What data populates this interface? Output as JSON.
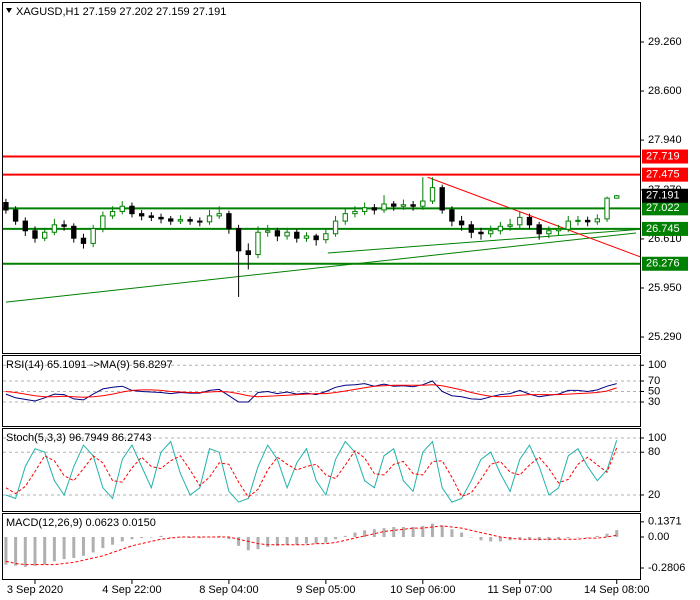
{
  "chart_data": [
    {
      "type": "candlestick",
      "title": "XAGUSD,H1  27.159 27.202 27.159 27.191",
      "up_color": "#008000",
      "down_color": "#000000",
      "xlim": [
        -0.3,
        65.4
      ],
      "xticks": [
        {
          "value": 3,
          "label": "3 Sep 2020"
        },
        {
          "value": 13,
          "label": "4 Sep 22:00"
        },
        {
          "value": 23,
          "label": "8 Sep 04:00"
        },
        {
          "value": 33,
          "label": "9 Sep 05:00"
        },
        {
          "value": 43,
          "label": "10 Sep 06:00"
        },
        {
          "value": 53,
          "label": "11 Sep 07:00"
        },
        {
          "value": 63,
          "label": "14 Sep 08:00"
        }
      ],
      "ylim": [
        25.075,
        29.785
      ],
      "yticks": [
        {
          "value": 29.26,
          "label": "29.260"
        },
        {
          "value": 28.6,
          "label": "28.600"
        },
        {
          "value": 27.94,
          "label": "27.940"
        },
        {
          "value": 27.27,
          "label": "27.270"
        },
        {
          "value": 26.61,
          "label": "26.610"
        },
        {
          "value": 25.95,
          "label": "25.950"
        },
        {
          "value": 25.29,
          "label": "25.290"
        }
      ],
      "levels": [
        {
          "value": 27.719,
          "label": "27.719",
          "color": "#ff0000"
        },
        {
          "value": 27.475,
          "label": "27.475",
          "color": "#ff0000"
        },
        {
          "value": 27.022,
          "label": "27.022",
          "color": "#008000"
        },
        {
          "value": 26.745,
          "label": "26.745",
          "color": "#008000"
        },
        {
          "value": 26.276,
          "label": "26.276",
          "color": "#008000"
        }
      ],
      "trendlines": [
        {
          "color": "#008000",
          "x": [
            0,
            65
          ],
          "y": [
            25.76,
            26.69
          ]
        },
        {
          "color": "#008000",
          "x": [
            33.2,
            65.4
          ],
          "y": [
            26.42,
            26.74
          ]
        },
        {
          "color": "#ff0000",
          "x": [
            43.5,
            65.4
          ],
          "y": [
            27.44,
            26.37
          ]
        }
      ],
      "ohlc": [
        [
          27.1,
          27.15,
          26.95,
          27.0
        ],
        [
          27.0,
          27.05,
          26.8,
          26.85
        ],
        [
          26.85,
          26.9,
          26.65,
          26.72
        ],
        [
          26.72,
          26.78,
          26.56,
          26.62
        ],
        [
          26.62,
          26.76,
          26.58,
          26.7
        ],
        [
          26.7,
          26.88,
          26.66,
          26.8
        ],
        [
          26.8,
          26.86,
          26.72,
          26.78
        ],
        [
          26.78,
          26.82,
          26.56,
          26.62
        ],
        [
          26.62,
          26.68,
          26.48,
          26.55
        ],
        [
          26.55,
          26.8,
          26.5,
          26.75
        ],
        [
          26.75,
          26.98,
          26.7,
          26.92
        ],
        [
          26.92,
          27.05,
          26.88,
          26.98
        ],
        [
          26.98,
          27.12,
          26.94,
          27.05
        ],
        [
          27.05,
          27.1,
          26.9,
          26.95
        ],
        [
          26.95,
          27.0,
          26.86,
          26.92
        ],
        [
          26.92,
          26.97,
          26.85,
          26.9
        ],
        [
          26.9,
          26.95,
          26.82,
          26.88
        ],
        [
          26.88,
          26.92,
          26.8,
          26.85
        ],
        [
          26.85,
          26.93,
          26.81,
          26.87
        ],
        [
          26.87,
          26.91,
          26.8,
          26.85
        ],
        [
          26.85,
          26.9,
          26.78,
          26.84
        ],
        [
          26.84,
          27.0,
          26.8,
          26.92
        ],
        [
          26.92,
          27.05,
          26.88,
          26.95
        ],
        [
          26.95,
          26.99,
          26.68,
          26.75
        ],
        [
          26.75,
          26.8,
          25.83,
          26.45
        ],
        [
          26.45,
          26.55,
          26.2,
          26.4
        ],
        [
          26.4,
          26.78,
          26.35,
          26.7
        ],
        [
          26.7,
          26.8,
          26.64,
          26.72
        ],
        [
          26.72,
          26.76,
          26.58,
          26.65
        ],
        [
          26.65,
          26.76,
          26.6,
          26.7
        ],
        [
          26.7,
          26.74,
          26.56,
          26.62
        ],
        [
          26.62,
          26.7,
          26.57,
          26.65
        ],
        [
          26.65,
          26.68,
          26.52,
          26.6
        ],
        [
          26.6,
          26.74,
          26.55,
          26.68
        ],
        [
          26.68,
          26.92,
          26.64,
          26.85
        ],
        [
          26.85,
          27.02,
          26.8,
          26.95
        ],
        [
          26.95,
          27.05,
          26.9,
          26.98
        ],
        [
          26.98,
          27.1,
          26.93,
          27.03
        ],
        [
          27.03,
          27.08,
          26.94,
          27.0
        ],
        [
          27.0,
          27.2,
          26.96,
          27.08
        ],
        [
          27.08,
          27.12,
          26.99,
          27.05
        ],
        [
          27.05,
          27.14,
          27.0,
          27.07
        ],
        [
          27.07,
          27.12,
          26.99,
          27.05
        ],
        [
          27.05,
          27.44,
          27.0,
          27.12
        ],
        [
          27.12,
          27.44,
          27.08,
          27.3
        ],
        [
          27.3,
          27.34,
          26.95,
          27.0
        ],
        [
          27.0,
          27.05,
          26.78,
          26.85
        ],
        [
          26.85,
          26.92,
          26.72,
          26.8
        ],
        [
          26.8,
          26.85,
          26.62,
          26.7
        ],
        [
          26.7,
          26.76,
          26.6,
          26.68
        ],
        [
          26.68,
          26.79,
          26.63,
          26.72
        ],
        [
          26.72,
          26.84,
          26.67,
          26.78
        ],
        [
          26.78,
          26.88,
          26.72,
          26.8
        ],
        [
          26.8,
          26.98,
          26.75,
          26.9
        ],
        [
          26.9,
          26.95,
          26.74,
          26.8
        ],
        [
          26.8,
          26.84,
          26.6,
          26.68
        ],
        [
          26.68,
          26.78,
          26.62,
          26.72
        ],
        [
          26.72,
          26.8,
          26.66,
          26.74
        ],
        [
          26.74,
          26.92,
          26.7,
          26.85
        ],
        [
          26.85,
          26.92,
          26.79,
          26.86
        ],
        [
          26.86,
          26.91,
          26.78,
          26.84
        ],
        [
          26.84,
          26.94,
          26.8,
          26.88
        ],
        [
          26.88,
          27.18,
          26.84,
          27.159
        ],
        [
          27.159,
          27.202,
          27.159,
          27.191
        ]
      ]
    },
    {
      "type": "line",
      "title": "RSI(14) 65.1091  ->MA(9) 56.8297",
      "ylim": [
        -15.7,
        117.6
      ],
      "yticks": [
        100,
        70,
        50,
        30
      ],
      "grid": true,
      "series": [
        {
          "color": "#000080",
          "dash": false,
          "values": [
            45,
            38,
            35,
            32,
            38,
            45,
            44,
            36,
            34,
            45,
            55,
            58,
            60,
            52,
            50,
            49,
            48,
            46,
            48,
            47,
            47,
            52,
            54,
            42,
            30,
            30,
            48,
            50,
            46,
            49,
            45,
            47,
            44,
            50,
            58,
            62,
            63,
            65,
            60,
            64,
            60,
            61,
            59,
            63,
            70,
            50,
            42,
            40,
            36,
            35,
            40,
            44,
            46,
            52,
            45,
            40,
            43,
            45,
            52,
            52,
            50,
            53,
            60,
            65.1091
          ]
        },
        {
          "color": "#ff0000",
          "dash": false,
          "values": [
            50,
            48,
            45,
            42,
            40,
            40,
            41,
            40,
            39,
            40,
            42,
            45,
            49,
            52,
            53,
            53,
            52,
            50,
            49,
            48,
            48,
            49,
            50,
            49,
            46,
            42,
            40,
            41,
            42,
            43,
            44,
            45,
            46,
            46,
            48,
            51,
            54,
            57,
            60,
            61,
            62,
            62,
            62,
            62,
            63,
            61,
            57,
            53,
            48,
            44,
            41,
            40,
            41,
            43,
            44,
            44,
            44,
            44,
            45,
            46,
            47,
            48,
            51,
            56.8297
          ]
        }
      ]
    },
    {
      "type": "line",
      "title": "Stoch(5,3,3) 96.7949 86.2743",
      "ylim": [
        -2.5,
        112.6
      ],
      "yticks": [
        100,
        80,
        20
      ],
      "grid": true,
      "series": [
        {
          "color": "#20b2aa",
          "dash": false,
          "values": [
            20,
            15,
            60,
            85,
            80,
            40,
            20,
            60,
            90,
            75,
            30,
            15,
            70,
            90,
            60,
            30,
            80,
            95,
            50,
            20,
            30,
            85,
            80,
            25,
            10,
            15,
            60,
            90,
            70,
            30,
            65,
            85,
            40,
            20,
            70,
            95,
            80,
            40,
            30,
            75,
            85,
            40,
            25,
            80,
            95,
            30,
            10,
            15,
            40,
            70,
            80,
            50,
            25,
            70,
            90,
            60,
            20,
            30,
            75,
            85,
            60,
            40,
            55,
            96.7949
          ]
        },
        {
          "color": "#ff0000",
          "dash": true,
          "values": [
            30,
            22,
            32,
            53,
            75,
            68,
            47,
            40,
            57,
            75,
            65,
            40,
            38,
            58,
            73,
            60,
            57,
            68,
            75,
            55,
            33,
            45,
            65,
            63,
            38,
            17,
            28,
            55,
            73,
            63,
            55,
            60,
            63,
            48,
            43,
            62,
            82,
            72,
            50,
            48,
            63,
            67,
            50,
            48,
            67,
            68,
            45,
            18,
            23,
            42,
            63,
            67,
            52,
            48,
            62,
            73,
            57,
            37,
            42,
            63,
            73,
            62,
            52,
            86.2743
          ]
        }
      ]
    },
    {
      "type": "macd",
      "title": "MACD(12,26,9) 0.0623 0.0150",
      "ylim": [
        -0.38,
        0.208
      ],
      "yticks": [
        0.1371,
        {
          "value": 0,
          "label": "0.00"
        },
        -0.2806
      ],
      "grid": false,
      "bar_color": "#b0b0b0",
      "signal_color": "#ff0000",
      "values": [
        -0.25,
        -0.26,
        -0.27,
        -0.26,
        -0.25,
        -0.22,
        -0.2,
        -0.19,
        -0.17,
        -0.14,
        -0.1,
        -0.07,
        -0.04,
        -0.02,
        -0.01,
        0.0,
        0.01,
        0.0,
        0.0,
        -0.01,
        -0.01,
        0.0,
        0.01,
        -0.02,
        -0.08,
        -0.12,
        -0.11,
        -0.09,
        -0.08,
        -0.07,
        -0.07,
        -0.06,
        -0.06,
        -0.05,
        -0.02,
        0.01,
        0.04,
        0.06,
        0.07,
        0.08,
        0.09,
        0.09,
        0.09,
        0.1,
        0.12,
        0.1,
        0.07,
        0.04,
        0.0,
        -0.03,
        -0.04,
        -0.04,
        -0.03,
        -0.02,
        -0.02,
        -0.03,
        -0.03,
        -0.02,
        -0.01,
        0.0,
        0.0,
        0.01,
        0.03,
        0.0623
      ],
      "signal": [
        -0.22,
        -0.24,
        -0.25,
        -0.25,
        -0.25,
        -0.25,
        -0.24,
        -0.23,
        -0.21,
        -0.19,
        -0.17,
        -0.14,
        -0.11,
        -0.08,
        -0.06,
        -0.04,
        -0.02,
        -0.01,
        0.0,
        0.0,
        0.0,
        0.0,
        0.0,
        0.0,
        -0.02,
        -0.04,
        -0.06,
        -0.07,
        -0.07,
        -0.07,
        -0.07,
        -0.07,
        -0.06,
        -0.06,
        -0.05,
        -0.03,
        -0.01,
        0.01,
        0.03,
        0.05,
        0.06,
        0.07,
        0.08,
        0.08,
        0.09,
        0.1,
        0.09,
        0.08,
        0.06,
        0.04,
        0.02,
        0.0,
        -0.01,
        -0.02,
        -0.02,
        -0.02,
        -0.02,
        -0.02,
        -0.02,
        -0.02,
        -0.01,
        -0.01,
        0.0,
        0.015
      ]
    }
  ]
}
